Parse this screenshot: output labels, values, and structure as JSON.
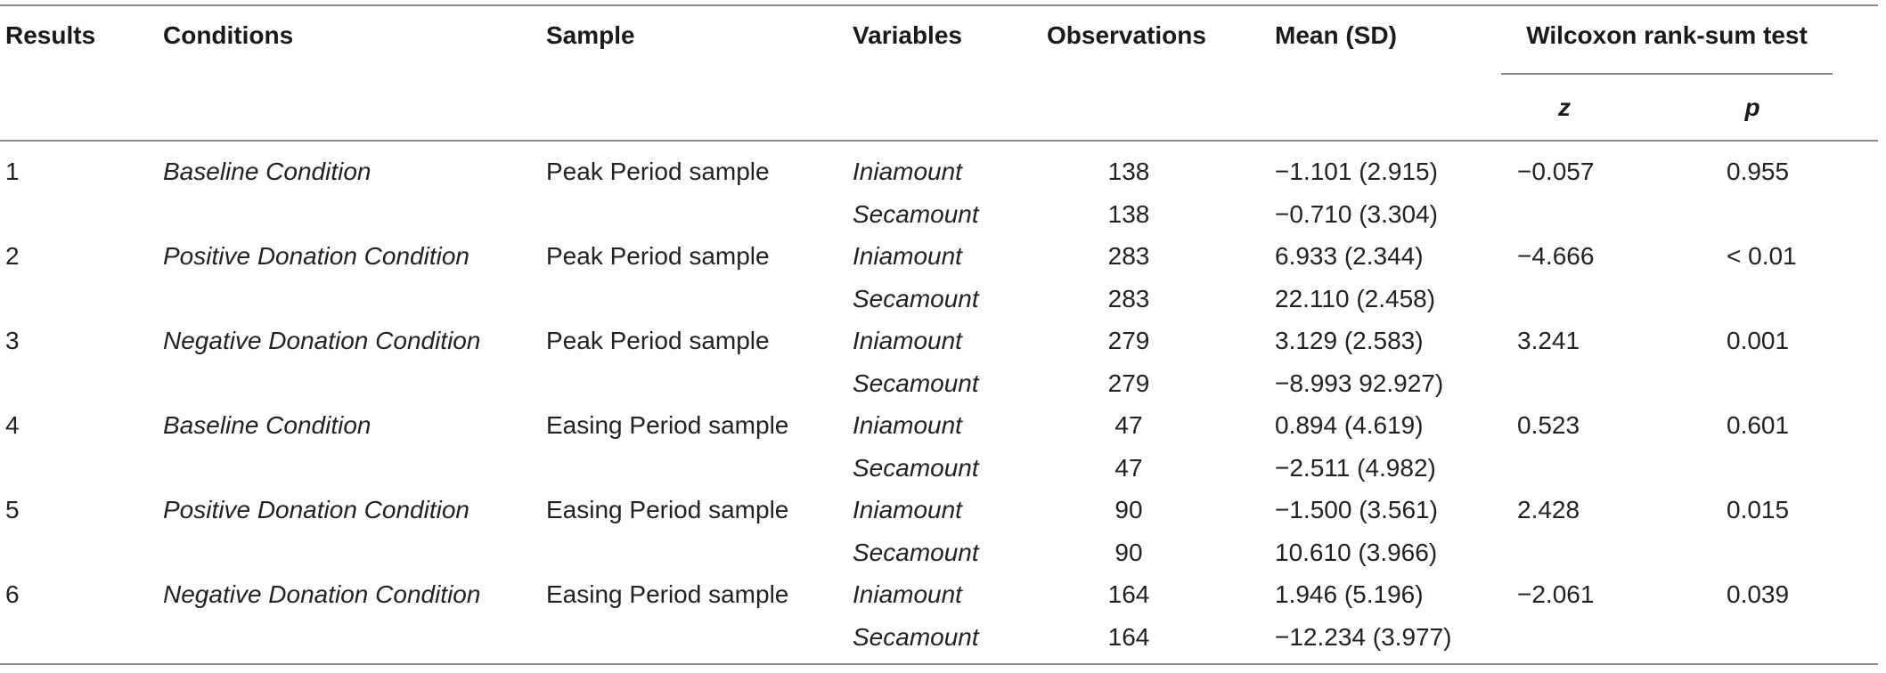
{
  "headers": {
    "results": "Results",
    "conditions": "Conditions",
    "sample": "Sample",
    "variables": "Variables",
    "observations": "Observations",
    "mean_sd": "Mean (SD)",
    "wilcoxon": "Wilcoxon rank-sum test",
    "z": "z",
    "p": "p"
  },
  "rows": [
    {
      "result": "1",
      "condition": "Baseline Condition",
      "sample": "Peak Period sample",
      "vars": [
        {
          "name": "Iniamount",
          "obs": "138",
          "mean": "−1.101 (2.915)"
        },
        {
          "name": "Secamount",
          "obs": "138",
          "mean": "−0.710 (3.304)"
        }
      ],
      "z": "−0.057",
      "p": "0.955"
    },
    {
      "result": "2",
      "condition": "Positive Donation Condition",
      "sample": "Peak Period sample",
      "vars": [
        {
          "name": "Iniamount",
          "obs": "283",
          "mean": "6.933 (2.344)"
        },
        {
          "name": "Secamount",
          "obs": "283",
          "mean": "22.110 (2.458)"
        }
      ],
      "z": "−4.666",
      "p": "< 0.01"
    },
    {
      "result": "3",
      "condition": "Negative Donation Condition",
      "sample": "Peak Period sample",
      "vars": [
        {
          "name": "Iniamount",
          "obs": "279",
          "mean": "3.129 (2.583)"
        },
        {
          "name": "Secamount",
          "obs": "279",
          "mean": "−8.993 92.927)"
        }
      ],
      "z": "3.241",
      "p": "0.001"
    },
    {
      "result": "4",
      "condition": "Baseline Condition",
      "sample": "Easing Period sample",
      "vars": [
        {
          "name": "Iniamount",
          "obs": "47",
          "mean": "0.894 (4.619)"
        },
        {
          "name": "Secamount",
          "obs": "47",
          "mean": "−2.511 (4.982)"
        }
      ],
      "z": "0.523",
      "p": "0.601"
    },
    {
      "result": "5",
      "condition": "Positive Donation Condition",
      "sample": "Easing Period sample",
      "vars": [
        {
          "name": "Iniamount",
          "obs": "90",
          "mean": "−1.500 (3.561)"
        },
        {
          "name": "Secamount",
          "obs": "90",
          "mean": "10.610 (3.966)"
        }
      ],
      "z": "2.428",
      "p": "0.015"
    },
    {
      "result": "6",
      "condition": "Negative Donation Condition",
      "sample": "Easing Period sample",
      "vars": [
        {
          "name": "Iniamount",
          "obs": "164",
          "mean": "1.946 (5.196)"
        },
        {
          "name": "Secamount",
          "obs": "164",
          "mean": "−12.234 (3.977)"
        }
      ],
      "z": "−2.061",
      "p": "0.039"
    }
  ]
}
